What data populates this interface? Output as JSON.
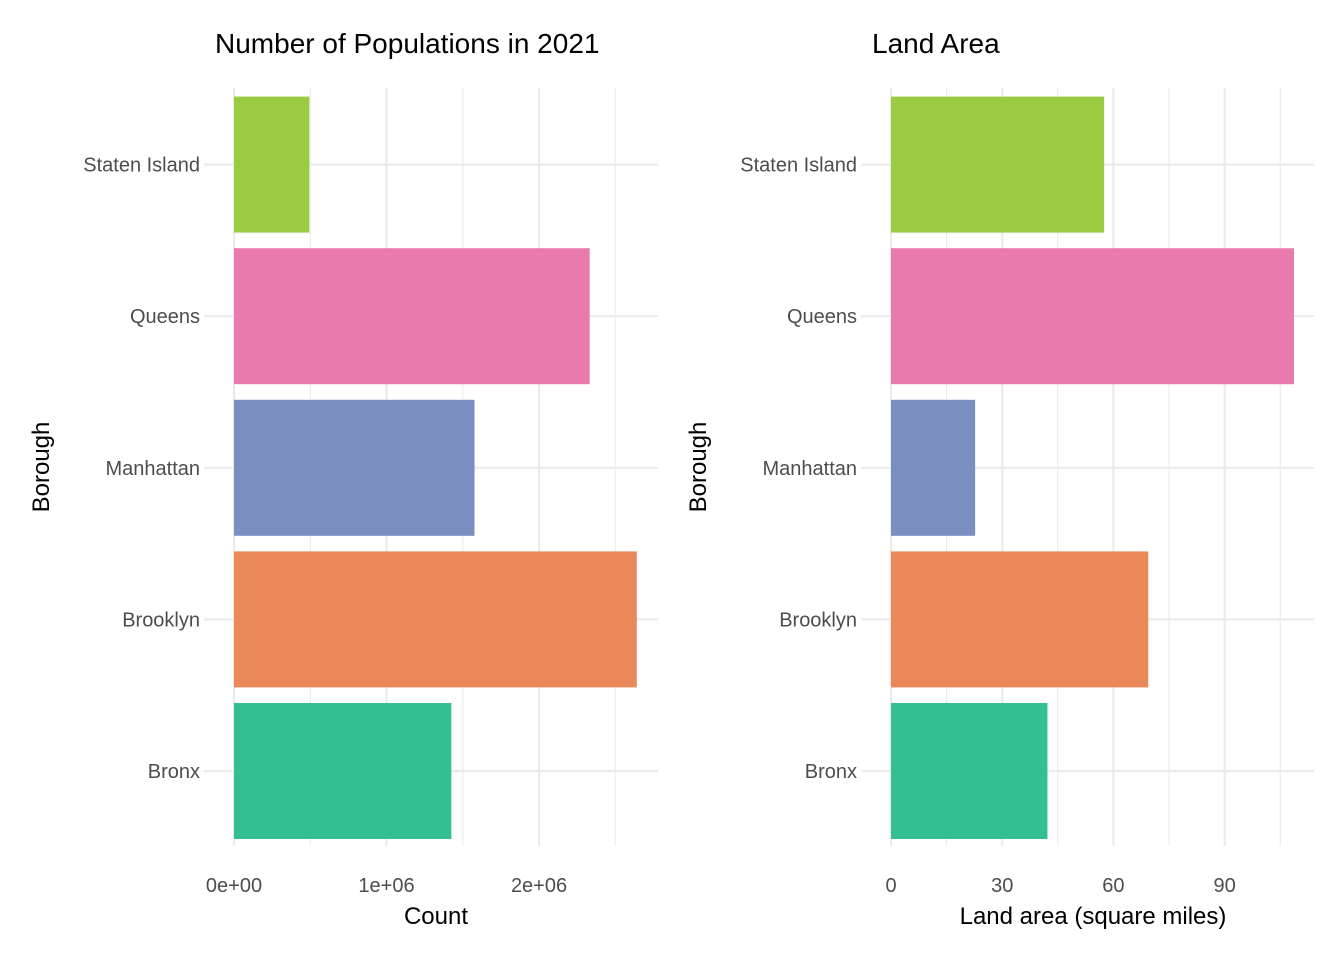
{
  "chart_data": [
    {
      "type": "bar",
      "orientation": "horizontal",
      "title": "Number of Populations in 2021",
      "xlabel": "Count",
      "ylabel": "Borough",
      "categories": [
        "Bronx",
        "Brooklyn",
        "Manhattan",
        "Queens",
        "Staten Island"
      ],
      "values": [
        1425000,
        2641000,
        1577000,
        2332000,
        494000
      ],
      "colors": [
        "#33bf93",
        "#ea885a",
        "#7b8ec0",
        "#e97aad",
        "#9bcb41"
      ],
      "xlim": [
        0,
        2780000
      ],
      "xticks": [
        0,
        1000000,
        2000000
      ],
      "xtick_labels": [
        "0e+00",
        "1e+06",
        "2e+06"
      ],
      "grid": true,
      "legend": "none"
    },
    {
      "type": "bar",
      "orientation": "horizontal",
      "title": "Land Area",
      "xlabel": "Land area (square miles)",
      "ylabel": "Borough",
      "categories": [
        "Bronx",
        "Brooklyn",
        "Manhattan",
        "Queens",
        "Staten Island"
      ],
      "values": [
        42.2,
        69.4,
        22.7,
        108.7,
        57.5
      ],
      "colors": [
        "#33bf93",
        "#ea885a",
        "#7b8ec0",
        "#e97aad",
        "#9bcb41"
      ],
      "xlim": [
        0,
        114.1
      ],
      "xticks": [
        0,
        30,
        60,
        90
      ],
      "xtick_labels": [
        "0",
        "30",
        "60",
        "90"
      ],
      "grid": true,
      "legend": "none"
    }
  ]
}
